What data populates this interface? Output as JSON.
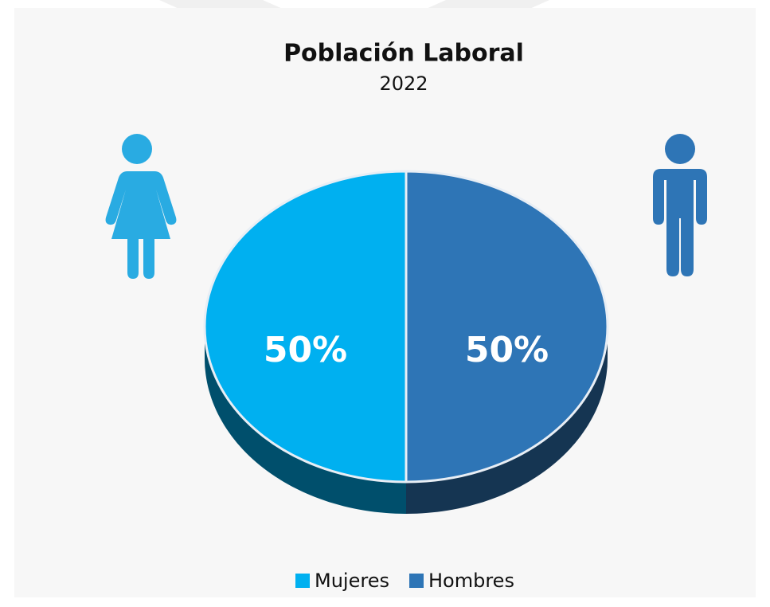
{
  "chart_data": {
    "type": "pie",
    "title": "Población Laboral",
    "subtitle": "2022",
    "categories": [
      "Mujeres",
      "Hombres"
    ],
    "values": [
      50,
      50
    ],
    "value_labels": [
      "50%",
      "50%"
    ],
    "colors": [
      "#00b0f0",
      "#2e75b6"
    ],
    "legend": "bottom"
  }
}
